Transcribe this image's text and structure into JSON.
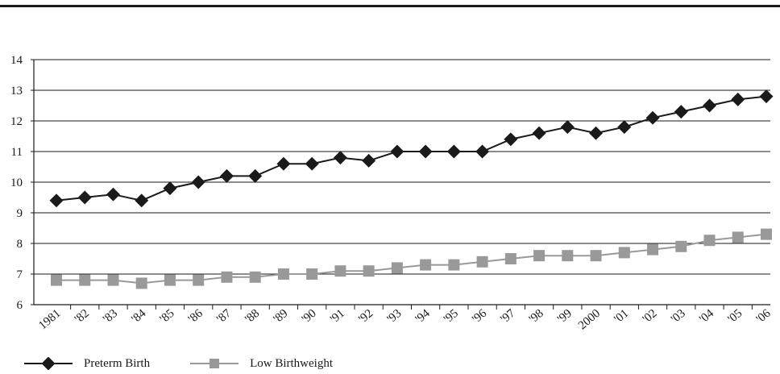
{
  "chart_data": {
    "type": "line",
    "title": "",
    "xlabel": "",
    "ylabel": "",
    "categories": [
      "1981",
      "'82",
      "'83",
      "'84",
      "'85",
      "'86",
      "'87",
      "'88",
      "'89",
      "'90",
      "'91",
      "'92",
      "'93",
      "'94",
      "'95",
      "'96",
      "'97",
      "'98",
      "'99",
      "2000",
      "'01",
      "'02",
      "'03",
      "'04",
      "'05",
      "'06"
    ],
    "ylim": [
      6,
      14
    ],
    "yticks": [
      6,
      7,
      8,
      9,
      10,
      11,
      12,
      13,
      14
    ],
    "grid": "horizontal",
    "legend_position": "bottom-left",
    "series": [
      {
        "name": "Preterm Birth",
        "color": "#1a1a1a",
        "marker": "diamond",
        "values": [
          9.4,
          9.5,
          9.6,
          9.4,
          9.8,
          10.0,
          10.2,
          10.2,
          10.6,
          10.6,
          10.8,
          10.7,
          11.0,
          11.0,
          11.0,
          11.0,
          11.4,
          11.6,
          11.8,
          11.6,
          11.8,
          12.1,
          12.3,
          12.5,
          12.7,
          12.8
        ]
      },
      {
        "name": "Low Birthweight",
        "color": "#999999",
        "marker": "square",
        "values": [
          6.8,
          6.8,
          6.8,
          6.7,
          6.8,
          6.8,
          6.9,
          6.9,
          7.0,
          7.0,
          7.1,
          7.1,
          7.2,
          7.3,
          7.3,
          7.4,
          7.5,
          7.6,
          7.6,
          7.6,
          7.7,
          7.8,
          7.9,
          8.1,
          8.2,
          8.3
        ]
      }
    ]
  }
}
